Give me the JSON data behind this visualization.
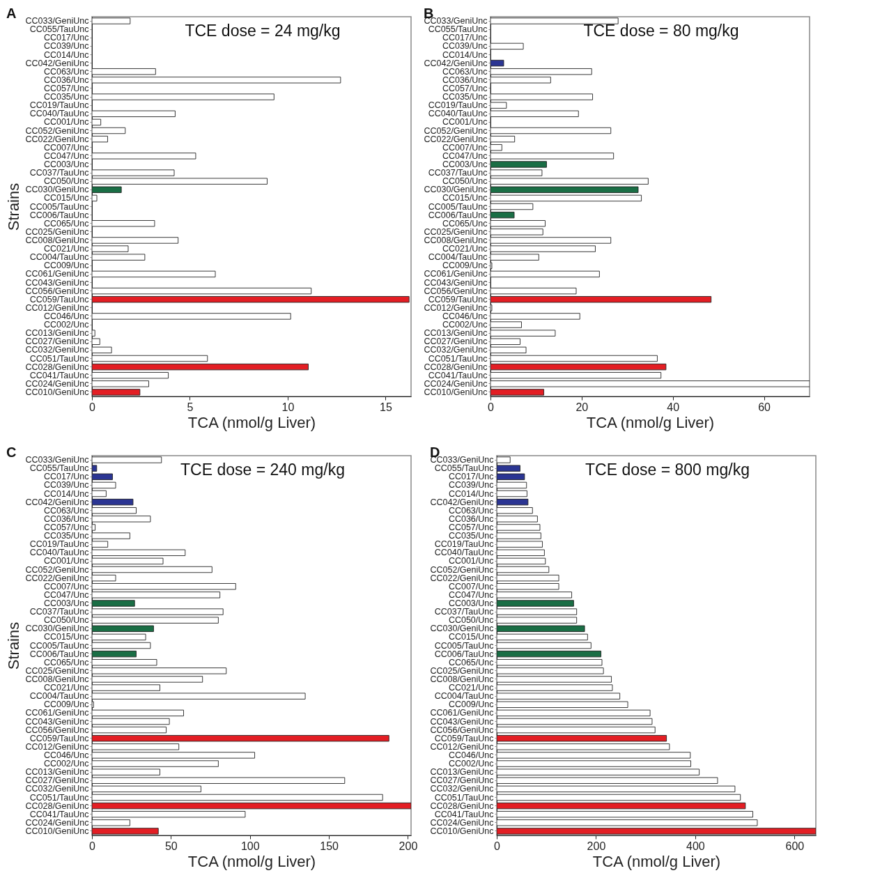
{
  "chart_data": [
    {
      "type": "bar",
      "orientation": "horizontal",
      "title": "A",
      "xlabel": "TCA (nmol/g Liver)",
      "ylabel": "Strains",
      "annotations": [
        "TCE dose = 24 mg/kg"
      ],
      "categories": [
        "CC033/GeniUnc",
        "CC055/TauUnc",
        "CC017/Unc",
        "CC039/Unc",
        "CC014/Unc",
        "CC042/GeniUnc",
        "CC063/Unc",
        "CC036/Unc",
        "CC057/Unc",
        "CC035/Unc",
        "CC019/TauUnc",
        "CC040/TauUnc",
        "CC001/Unc",
        "CC052/GeniUnc",
        "CC022/GeniUnc",
        "CC007/Unc",
        "CC047/Unc",
        "CC003/Unc",
        "CC037/TauUnc",
        "CC050/Unc",
        "CC030/GeniUnc",
        "CC015/Unc",
        "CC005/TauUnc",
        "CC006/TauUnc",
        "CC065/Unc",
        "CC025/GeniUnc",
        "CC008/GeniUnc",
        "CC021/Unc",
        "CC004/TauUnc",
        "CC009/Unc",
        "CC061/GeniUnc",
        "CC043/GeniUnc",
        "CC056/GeniUnc",
        "CC059/TauUnc",
        "CC012/GeniUnc",
        "CC046/Unc",
        "CC002/Unc",
        "CC013/GeniUnc",
        "CC027/GeniUnc",
        "CC032/GeniUnc",
        "CC051/TauUnc",
        "CC028/GeniUnc",
        "CC041/TauUnc",
        "CC024/GeniUnc",
        "CC010/GeniUnc"
      ],
      "values": [
        1.95,
        0,
        0,
        0,
        0,
        0,
        3.25,
        12.7,
        0,
        9.3,
        0,
        4.25,
        0.45,
        1.7,
        0.8,
        0,
        5.3,
        0,
        4.2,
        8.95,
        1.5,
        0.25,
        0,
        0,
        3.2,
        0,
        4.4,
        1.85,
        2.7,
        0,
        6.3,
        0,
        11.2,
        16.2,
        0,
        10.15,
        0,
        0.15,
        0.4,
        1.0,
        5.9,
        11.05,
        3.9,
        2.9,
        2.45
      ],
      "colors": [
        "#ffffff",
        "#ffffff",
        "#ffffff",
        "#ffffff",
        "#ffffff",
        "#ffffff",
        "#ffffff",
        "#ffffff",
        "#ffffff",
        "#ffffff",
        "#ffffff",
        "#ffffff",
        "#ffffff",
        "#ffffff",
        "#ffffff",
        "#ffffff",
        "#ffffff",
        "#ffffff",
        "#ffffff",
        "#ffffff",
        "#1a6e45",
        "#ffffff",
        "#ffffff",
        "#ffffff",
        "#ffffff",
        "#ffffff",
        "#ffffff",
        "#ffffff",
        "#ffffff",
        "#ffffff",
        "#ffffff",
        "#ffffff",
        "#ffffff",
        "#e31e24",
        "#ffffff",
        "#ffffff",
        "#ffffff",
        "#ffffff",
        "#ffffff",
        "#ffffff",
        "#ffffff",
        "#e31e24",
        "#ffffff",
        "#ffffff",
        "#e31e24"
      ],
      "xlim": [
        0,
        16.3
      ],
      "xticks": [
        0,
        5,
        10,
        15
      ]
    },
    {
      "type": "bar",
      "orientation": "horizontal",
      "title": "B",
      "xlabel": "TCA (nmol/g Liver)",
      "annotations": [
        "TCE dose = 80 mg/kg"
      ],
      "categories": [
        "CC033/GeniUnc",
        "CC055/TauUnc",
        "CC017/Unc",
        "CC039/Unc",
        "CC014/Unc",
        "CC042/GeniUnc",
        "CC063/Unc",
        "CC036/Unc",
        "CC057/Unc",
        "CC035/Unc",
        "CC019/TauUnc",
        "CC040/TauUnc",
        "CC001/Unc",
        "CC052/GeniUnc",
        "CC022/GeniUnc",
        "CC007/Unc",
        "CC047/Unc",
        "CC003/Unc",
        "CC037/TauUnc",
        "CC050/Unc",
        "CC030/GeniUnc",
        "CC015/Unc",
        "CC005/TauUnc",
        "CC006/TauUnc",
        "CC065/Unc",
        "CC025/GeniUnc",
        "CC008/GeniUnc",
        "CC021/Unc",
        "CC004/TauUnc",
        "CC009/Unc",
        "CC061/GeniUnc",
        "CC043/GeniUnc",
        "CC056/GeniUnc",
        "CC059/TauUnc",
        "CC012/GeniUnc",
        "CC046/Unc",
        "CC002/Unc",
        "CC013/GeniUnc",
        "CC027/GeniUnc",
        "CC032/GeniUnc",
        "CC051/TauUnc",
        "CC028/GeniUnc",
        "CC041/TauUnc",
        "CC024/GeniUnc",
        "CC010/GeniUnc"
      ],
      "values": [
        28,
        0,
        0,
        7.2,
        0,
        2.9,
        22.2,
        13.2,
        0,
        22.4,
        3.5,
        19.3,
        0,
        26.4,
        5.3,
        2.5,
        27,
        12.3,
        11.3,
        34.6,
        32.4,
        33.1,
        9.3,
        5.2,
        12,
        11.5,
        26.4,
        23,
        10.6,
        0.3,
        23.9,
        0,
        18.8,
        48.4,
        0.3,
        19.6,
        6.8,
        14.2,
        6.5,
        7.8,
        36.6,
        38.5,
        37.4,
        70,
        11.7
      ],
      "colors": [
        "#ffffff",
        "#ffffff",
        "#ffffff",
        "#ffffff",
        "#ffffff",
        "#2b3593",
        "#ffffff",
        "#ffffff",
        "#ffffff",
        "#ffffff",
        "#ffffff",
        "#ffffff",
        "#ffffff",
        "#ffffff",
        "#ffffff",
        "#ffffff",
        "#ffffff",
        "#1a6e45",
        "#ffffff",
        "#ffffff",
        "#1a6e45",
        "#ffffff",
        "#ffffff",
        "#1a6e45",
        "#ffffff",
        "#ffffff",
        "#ffffff",
        "#ffffff",
        "#ffffff",
        "#ffffff",
        "#ffffff",
        "#ffffff",
        "#ffffff",
        "#e31e24",
        "#ffffff",
        "#ffffff",
        "#ffffff",
        "#ffffff",
        "#ffffff",
        "#ffffff",
        "#ffffff",
        "#e31e24",
        "#ffffff",
        "#ffffff",
        "#e31e24"
      ],
      "xlim": [
        0,
        70
      ],
      "xticks": [
        0,
        20,
        40,
        60
      ]
    },
    {
      "type": "bar",
      "orientation": "horizontal",
      "title": "C",
      "xlabel": "TCA (nmol/g Liver)",
      "ylabel": "Strains",
      "annotations": [
        "TCE dose = 240 mg/kg"
      ],
      "categories": [
        "CC033/GeniUnc",
        "CC055/TauUnc",
        "CC017/Unc",
        "CC039/Unc",
        "CC014/Unc",
        "CC042/GeniUnc",
        "CC063/Unc",
        "CC036/Unc",
        "CC057/Unc",
        "CC035/Unc",
        "CC019/TauUnc",
        "CC040/TauUnc",
        "CC001/Unc",
        "CC052/GeniUnc",
        "CC022/GeniUnc",
        "CC007/Unc",
        "CC047/Unc",
        "CC003/Unc",
        "CC037/TauUnc",
        "CC050/Unc",
        "CC030/GeniUnc",
        "CC015/Unc",
        "CC005/TauUnc",
        "CC006/TauUnc",
        "CC065/Unc",
        "CC025/GeniUnc",
        "CC008/GeniUnc",
        "CC021/Unc",
        "CC004/TauUnc",
        "CC009/Unc",
        "CC061/GeniUnc",
        "CC043/GeniUnc",
        "CC056/GeniUnc",
        "CC059/TauUnc",
        "CC012/GeniUnc",
        "CC046/Unc",
        "CC002/Unc",
        "CC013/GeniUnc",
        "CC027/GeniUnc",
        "CC032/GeniUnc",
        "CC051/TauUnc",
        "CC028/GeniUnc",
        "CC041/TauUnc",
        "CC024/GeniUnc",
        "CC010/GeniUnc"
      ],
      "values": [
        44,
        3,
        13,
        15,
        9,
        26,
        28,
        37,
        2,
        24,
        10,
        59,
        45,
        76,
        15,
        91,
        81,
        27,
        83,
        80,
        39,
        34,
        37,
        28,
        41,
        85,
        70,
        43,
        135,
        1,
        58,
        49,
        47,
        188,
        55,
        103,
        80,
        43,
        160,
        69,
        184,
        202,
        97,
        24,
        42
      ],
      "colors": [
        "#ffffff",
        "#2b3593",
        "#2b3593",
        "#ffffff",
        "#ffffff",
        "#2b3593",
        "#ffffff",
        "#ffffff",
        "#ffffff",
        "#ffffff",
        "#ffffff",
        "#ffffff",
        "#ffffff",
        "#ffffff",
        "#ffffff",
        "#ffffff",
        "#ffffff",
        "#1a6e45",
        "#ffffff",
        "#ffffff",
        "#1a6e45",
        "#ffffff",
        "#ffffff",
        "#1a6e45",
        "#ffffff",
        "#ffffff",
        "#ffffff",
        "#ffffff",
        "#ffffff",
        "#ffffff",
        "#ffffff",
        "#ffffff",
        "#ffffff",
        "#e31e24",
        "#ffffff",
        "#ffffff",
        "#ffffff",
        "#ffffff",
        "#ffffff",
        "#ffffff",
        "#ffffff",
        "#e31e24",
        "#ffffff",
        "#ffffff",
        "#e31e24"
      ],
      "xlim": [
        0,
        202
      ],
      "xticks": [
        0,
        50,
        100,
        150,
        200
      ]
    },
    {
      "type": "bar",
      "orientation": "horizontal",
      "title": "D",
      "xlabel": "TCA (nmol/g Liver)",
      "annotations": [
        "TCE dose = 800 mg/kg"
      ],
      "categories": [
        "CC033/GeniUnc",
        "CC055/TauUnc",
        "CC017/Unc",
        "CC039/Unc",
        "CC014/Unc",
        "CC042/GeniUnc",
        "CC063/Unc",
        "CC036/Unc",
        "CC057/Unc",
        "CC035/Unc",
        "CC019/TauUnc",
        "CC040/TauUnc",
        "CC001/Unc",
        "CC052/GeniUnc",
        "CC022/GeniUnc",
        "CC007/Unc",
        "CC047/Unc",
        "CC003/Unc",
        "CC037/TauUnc",
        "CC050/Unc",
        "CC030/GeniUnc",
        "CC015/Unc",
        "CC005/TauUnc",
        "CC006/TauUnc",
        "CC065/Unc",
        "CC025/GeniUnc",
        "CC008/GeniUnc",
        "CC021/Unc",
        "CC004/TauUnc",
        "CC009/Unc",
        "CC061/GeniUnc",
        "CC043/GeniUnc",
        "CC056/GeniUnc",
        "CC059/TauUnc",
        "CC012/GeniUnc",
        "CC046/Unc",
        "CC002/Unc",
        "CC013/GeniUnc",
        "CC027/GeniUnc",
        "CC032/GeniUnc",
        "CC051/TauUnc",
        "CC028/GeniUnc",
        "CC041/TauUnc",
        "CC024/GeniUnc",
        "CC010/GeniUnc"
      ],
      "values": [
        27,
        47,
        56,
        60,
        61,
        63,
        72,
        82,
        87,
        89,
        92,
        96,
        98,
        105,
        125,
        125,
        151,
        155,
        161,
        161,
        177,
        183,
        190,
        210,
        212,
        215,
        231,
        233,
        248,
        264,
        309,
        313,
        319,
        342,
        348,
        390,
        391,
        408,
        445,
        480,
        491,
        501,
        516,
        525,
        643
      ],
      "colors": [
        "#ffffff",
        "#2b3593",
        "#2b3593",
        "#ffffff",
        "#ffffff",
        "#2b3593",
        "#ffffff",
        "#ffffff",
        "#ffffff",
        "#ffffff",
        "#ffffff",
        "#ffffff",
        "#ffffff",
        "#ffffff",
        "#ffffff",
        "#ffffff",
        "#ffffff",
        "#1a6e45",
        "#ffffff",
        "#ffffff",
        "#1a6e45",
        "#ffffff",
        "#ffffff",
        "#1a6e45",
        "#ffffff",
        "#ffffff",
        "#ffffff",
        "#ffffff",
        "#ffffff",
        "#ffffff",
        "#ffffff",
        "#ffffff",
        "#ffffff",
        "#e31e24",
        "#ffffff",
        "#ffffff",
        "#ffffff",
        "#ffffff",
        "#ffffff",
        "#ffffff",
        "#ffffff",
        "#e31e24",
        "#ffffff",
        "#ffffff",
        "#e31e24"
      ],
      "xlim": [
        0,
        643
      ],
      "xticks": [
        0,
        200,
        400,
        600
      ]
    }
  ]
}
